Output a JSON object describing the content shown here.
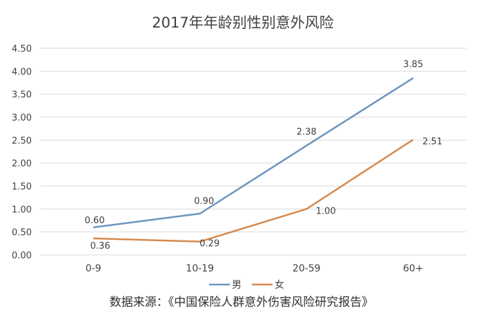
{
  "chart_data": {
    "type": "line",
    "title": "2017年年龄别性别意外风险",
    "categories": [
      "0-9",
      "10-19",
      "20-59",
      "60+"
    ],
    "ylim": [
      0,
      4.5
    ],
    "ystep": 0.5,
    "yticks": [
      "0.00",
      "0.50",
      "1.00",
      "1.50",
      "2.00",
      "2.50",
      "3.00",
      "3.50",
      "4.00",
      "4.50"
    ],
    "grid": true,
    "legend_position": "bottom",
    "series": [
      {
        "name": "男",
        "color": "#6A94BE",
        "values": [
          0.6,
          0.9,
          2.38,
          3.85
        ],
        "labels": [
          "0.60",
          "0.90",
          "2.38",
          "3.85"
        ]
      },
      {
        "name": "女",
        "color": "#D5884C",
        "values": [
          0.36,
          0.29,
          1.0,
          2.51
        ],
        "labels": [
          "0.36",
          "0.29",
          "1.00",
          "2.51"
        ]
      }
    ],
    "source": "数据来源：《中国保险人群意外伤害风险研究报告》"
  }
}
